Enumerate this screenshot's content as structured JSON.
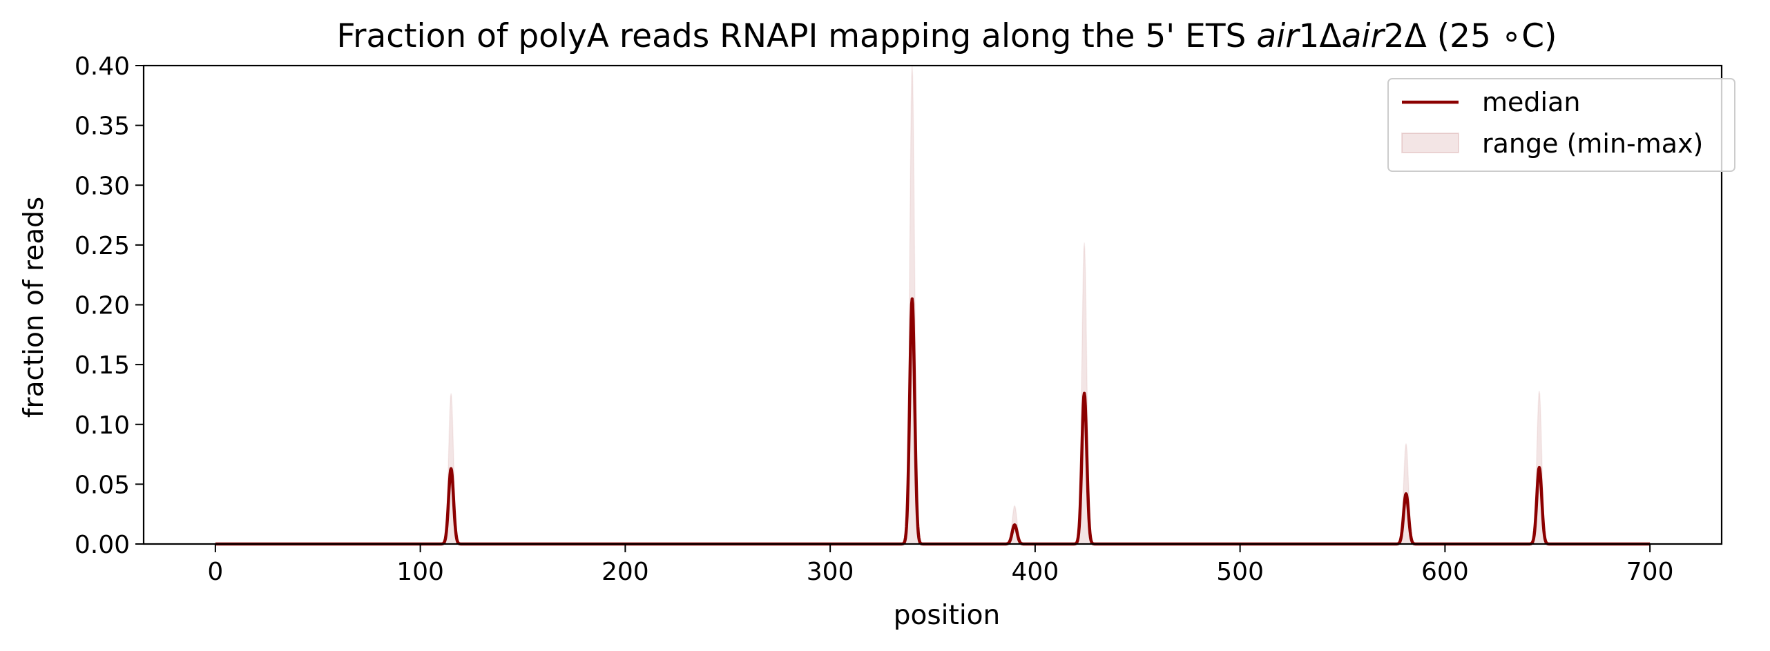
{
  "chart_data": {
    "type": "line",
    "title": {
      "prefix": "Fraction of polyA reads RNAPI mapping along the 5' ETS ",
      "g1_italic": "air",
      "g1_rest": "1Δ",
      "g2_italic": "air",
      "g2_rest": "2Δ",
      "suffix": " (25 ∘C)"
    },
    "xlabel": "position",
    "ylabel": "fraction of reads",
    "xlim": [
      -35,
      735
    ],
    "ylim": [
      0,
      0.4
    ],
    "x_ticks": [
      0,
      100,
      200,
      300,
      400,
      500,
      600,
      700
    ],
    "y_ticks": [
      0.0,
      0.05,
      0.1,
      0.15,
      0.2,
      0.25,
      0.3,
      0.35,
      0.4
    ],
    "y_tick_labels": [
      "0.00",
      "0.05",
      "0.10",
      "0.15",
      "0.20",
      "0.25",
      "0.30",
      "0.35",
      "0.40"
    ],
    "x_range": [
      0,
      700
    ],
    "series": [
      {
        "name": "median",
        "kind": "line",
        "color": "#8b0000",
        "peaks": [
          {
            "x": 115,
            "y": 0.063
          },
          {
            "x": 340,
            "y": 0.205
          },
          {
            "x": 390,
            "y": 0.016
          },
          {
            "x": 424,
            "y": 0.126
          },
          {
            "x": 581,
            "y": 0.042
          },
          {
            "x": 646,
            "y": 0.064
          }
        ]
      },
      {
        "name": "range (min-max)",
        "kind": "band",
        "color": "#8b0000",
        "opacity": 0.1,
        "lower": 0,
        "upper_peaks": [
          {
            "x": 115,
            "y": 0.126
          },
          {
            "x": 340,
            "y": 0.4
          },
          {
            "x": 390,
            "y": 0.032
          },
          {
            "x": 424,
            "y": 0.252
          },
          {
            "x": 581,
            "y": 0.084
          },
          {
            "x": 646,
            "y": 0.128
          }
        ]
      }
    ],
    "legend": {
      "placement": "top-right",
      "entries": [
        "median",
        "range (min-max)"
      ]
    },
    "grid": false
  }
}
